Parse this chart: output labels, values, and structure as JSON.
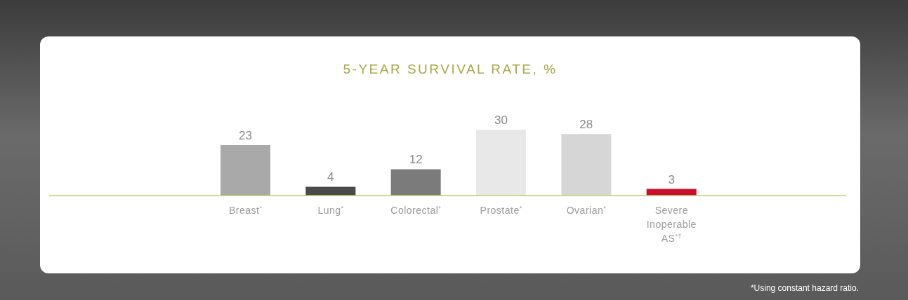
{
  "chart_data": {
    "type": "bar",
    "title": "5-YEAR SURVIVAL RATE, %",
    "categories": [
      "Breast$^{*}$",
      "Lung$^{*}$",
      "Colorectal$^{*}$",
      "Prostate$^{*}$",
      "Ovarian$^{*}$",
      "Severe Inoperable AS$^{*†}$"
    ],
    "values": [
      23,
      4,
      12,
      30,
      28,
      3
    ],
    "colors": [
      "#a9a9a9",
      "#4a4a4a",
      "#7b7b7b",
      "#e8e8e8",
      "#d6d6d6",
      "#c8102e"
    ],
    "data_labels": true,
    "annotations": [
      "*Using constant hazard ratio."
    ]
  }
}
